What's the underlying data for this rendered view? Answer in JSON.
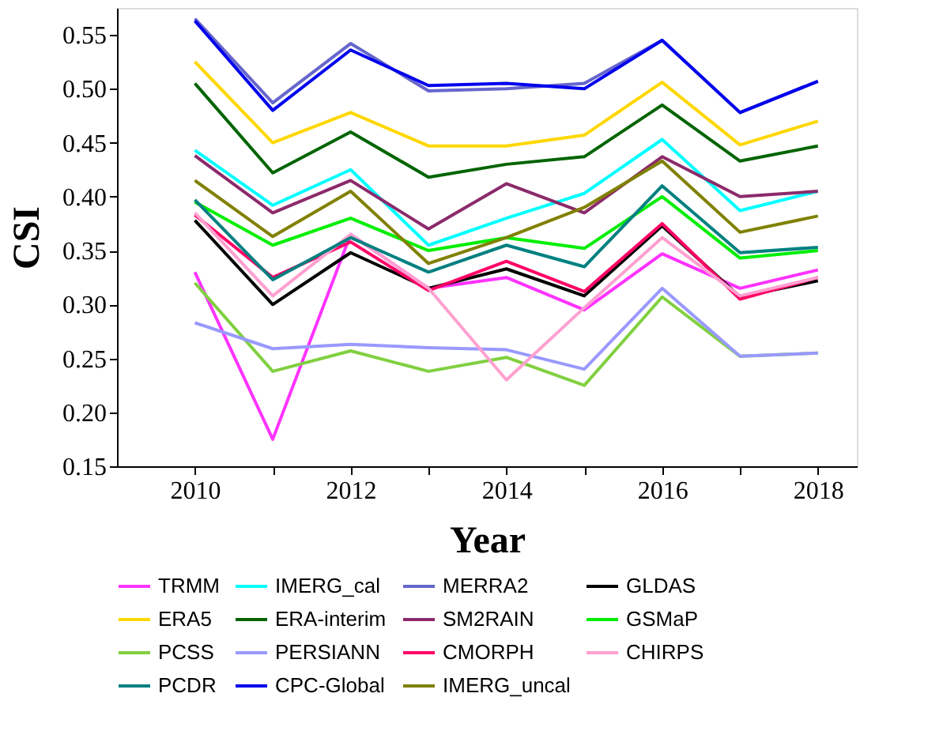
{
  "chart_data": {
    "type": "line",
    "xlabel": "Year",
    "ylabel": "CSI",
    "x": [
      2010,
      2011,
      2012,
      2013,
      2014,
      2015,
      2016,
      2017,
      2018
    ],
    "xlim": [
      2009,
      2018.5
    ],
    "xticks": [
      2010,
      {
        "value": 2011,
        "label": null
      },
      2012,
      {
        "value": 2013,
        "label": null
      },
      2014,
      {
        "value": 2015,
        "label": null
      },
      2016,
      {
        "value": 2017,
        "label": null
      },
      2018
    ],
    "ylim": [
      0.15,
      0.575
    ],
    "yticks": [
      0.15,
      {
        "value": 0.2,
        "label": "0.20"
      },
      0.25,
      {
        "value": 0.3,
        "label": "0.30"
      },
      0.35,
      {
        "value": 0.4,
        "label": "0.40"
      },
      0.45,
      {
        "value": 0.5,
        "label": "0.50"
      },
      0.55
    ],
    "grid": false,
    "legend": "bottom",
    "line_style": "solid",
    "series": [
      {
        "name": "TRMM",
        "color": "#ff33ff",
        "values": [
          0.33,
          0.175,
          0.365,
          0.315,
          0.325,
          0.295,
          0.347,
          0.315,
          0.332
        ]
      },
      {
        "name": "IMERG_cal",
        "color": "#00ffff",
        "values": [
          0.443,
          0.392,
          0.425,
          0.355,
          0.38,
          0.403,
          0.453,
          0.387,
          0.405
        ]
      },
      {
        "name": "MERRA2",
        "color": "#6666cc",
        "values": [
          0.565,
          0.487,
          0.542,
          0.498,
          0.5,
          0.505,
          0.545,
          0.478,
          0.507
        ]
      },
      {
        "name": "GLDAS",
        "color": "#000000",
        "values": [
          0.378,
          0.3,
          0.348,
          0.315,
          0.333,
          0.308,
          0.373,
          0.307,
          0.322
        ]
      },
      {
        "name": "ERA5",
        "color": "#ffd700",
        "values": [
          0.525,
          0.45,
          0.478,
          0.447,
          0.447,
          0.457,
          0.506,
          0.448,
          0.47
        ]
      },
      {
        "name": "ERA-interim",
        "color": "#006400",
        "values": [
          0.505,
          0.422,
          0.46,
          0.418,
          0.43,
          0.437,
          0.485,
          0.433,
          0.447
        ]
      },
      {
        "name": "SM2RAIN",
        "color": "#8b2a6b",
        "values": [
          0.438,
          0.385,
          0.415,
          0.37,
          0.412,
          0.385,
          0.437,
          0.4,
          0.405
        ]
      },
      {
        "name": "GSMaP",
        "color": "#00ee00",
        "values": [
          0.395,
          0.355,
          0.38,
          0.35,
          0.362,
          0.352,
          0.4,
          0.343,
          0.35
        ]
      },
      {
        "name": "PCSS",
        "color": "#80d040",
        "values": [
          0.32,
          0.238,
          0.257,
          0.238,
          0.251,
          0.225,
          0.307,
          0.252,
          0.255
        ]
      },
      {
        "name": "PERSIANN",
        "color": "#9999ff",
        "values": [
          0.283,
          0.259,
          0.263,
          0.26,
          0.258,
          0.24,
          0.315,
          0.252,
          0.255
        ]
      },
      {
        "name": "CMORPH",
        "color": "#ff0066",
        "values": [
          0.383,
          0.325,
          0.358,
          0.313,
          0.34,
          0.312,
          0.375,
          0.305,
          0.325
        ]
      },
      {
        "name": "CHIRPS",
        "color": "#ffa0d0",
        "values": [
          0.385,
          0.308,
          0.365,
          0.315,
          0.23,
          0.297,
          0.362,
          0.308,
          0.325
        ]
      },
      {
        "name": "PCDR",
        "color": "#008080",
        "values": [
          0.397,
          0.323,
          0.362,
          0.33,
          0.355,
          0.335,
          0.41,
          0.348,
          0.353
        ]
      },
      {
        "name": "CPC-Global",
        "color": "#0000ee",
        "values": [
          0.563,
          0.48,
          0.536,
          0.503,
          0.505,
          0.5,
          0.545,
          0.478,
          0.507
        ]
      },
      {
        "name": "IMERG_uncal",
        "color": "#808000",
        "values": [
          0.415,
          0.363,
          0.405,
          0.338,
          0.362,
          0.39,
          0.433,
          0.367,
          0.382
        ]
      }
    ]
  }
}
